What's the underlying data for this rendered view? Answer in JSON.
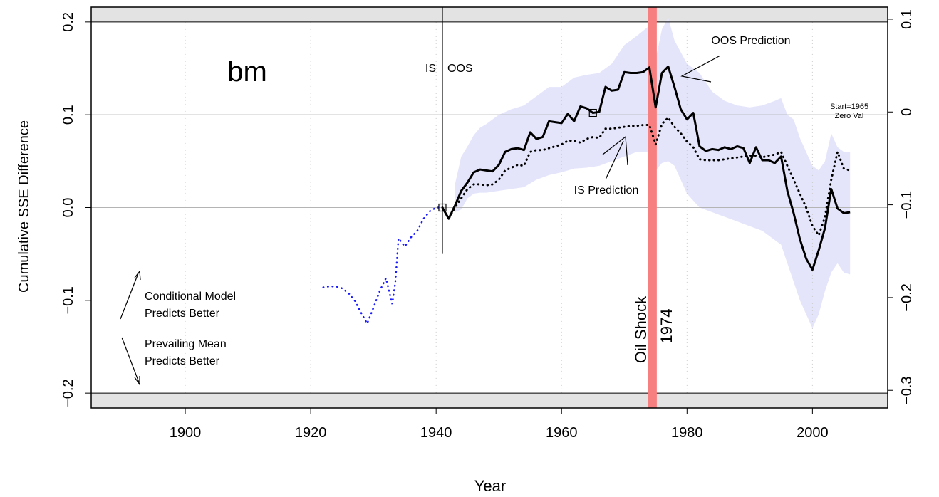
{
  "colors": {
    "background": "#ffffff",
    "grey_band": "#e3e3e3",
    "ci_band": "#e4e5fb",
    "oil_shock_bar": "#f87f7f",
    "is_dotted_series": "#1a1aff",
    "oos_line": "#000000",
    "reference_lines": "#b4b4b4",
    "grid": "#c8c8c8"
  },
  "chart_data": {
    "type": "line",
    "title": "bm",
    "xlabel": "Year",
    "ylabel": "Cumulative SSE Difference",
    "xlim": [
      1885,
      2012
    ],
    "ylim": [
      -0.216,
      0.216
    ],
    "x_ticks": [
      1900,
      1920,
      1940,
      1960,
      1980,
      2000
    ],
    "x_tick_labels": [
      "1900",
      "1920",
      "1940",
      "1960",
      "1980",
      "2000"
    ],
    "y_ticks": [
      -0.2,
      -0.1,
      0.0,
      0.1,
      0.2
    ],
    "y_tick_labels": [
      "−0.2",
      "−0.1",
      "0.0",
      "0.1",
      "0.2"
    ],
    "right_axis": {
      "offset": 0.103,
      "ticks": [
        -0.3,
        -0.2,
        -0.1,
        0.0,
        0.1
      ],
      "tick_labels": [
        "−0.3",
        "−0.2",
        "−0.1",
        "0",
        "0.1"
      ]
    },
    "grid": "vertical dotted",
    "reference_lines_y": [
      0.2,
      0.1,
      0.0,
      -0.2
    ],
    "bands_beyond": [
      0.2,
      -0.2
    ],
    "series": [
      {
        "style": "blue-dotted",
        "x": [
          1922,
          1923,
          1924,
          1925,
          1926,
          1927,
          1928,
          1929,
          1930,
          1931,
          1932,
          1933,
          1933.5,
          1934,
          1935,
          1936,
          1937,
          1938,
          1939,
          1940,
          1941
        ],
        "values": [
          -0.086,
          -0.085,
          -0.085,
          -0.087,
          -0.092,
          -0.1,
          -0.113,
          -0.125,
          -0.108,
          -0.09,
          -0.076,
          -0.104,
          -0.08,
          -0.033,
          -0.042,
          -0.032,
          -0.025,
          -0.012,
          -0.004,
          0.0,
          0.0
        ]
      },
      {
        "name": "IS Prediction",
        "style": "black-dotted",
        "x": [
          1941,
          1942,
          1943,
          1944,
          1945,
          1946,
          1947,
          1948,
          1949,
          1950,
          1951,
          1952,
          1953,
          1954,
          1955,
          1956,
          1957,
          1958,
          1959,
          1960,
          1961,
          1962,
          1963,
          1964,
          1965,
          1966,
          1967,
          1968,
          1969,
          1970,
          1971,
          1972,
          1973,
          1974,
          1975,
          1976,
          1977,
          1978,
          1979,
          1980,
          1981,
          1982,
          1983,
          1984,
          1985,
          1986,
          1987,
          1988,
          1989,
          1990,
          1991,
          1992,
          1993,
          1994,
          1995,
          1996,
          1997,
          1998,
          1999,
          2000,
          2001,
          2002,
          2003,
          2004,
          2005,
          2006
        ],
        "values": [
          0.0,
          -0.012,
          0.0,
          0.01,
          0.02,
          0.025,
          0.025,
          0.024,
          0.025,
          0.03,
          0.04,
          0.043,
          0.046,
          0.045,
          0.06,
          0.062,
          0.062,
          0.064,
          0.066,
          0.068,
          0.072,
          0.072,
          0.07,
          0.074,
          0.076,
          0.075,
          0.085,
          0.085,
          0.086,
          0.087,
          0.088,
          0.088,
          0.089,
          0.089,
          0.068,
          0.09,
          0.097,
          0.087,
          0.08,
          0.071,
          0.065,
          0.052,
          0.051,
          0.051,
          0.051,
          0.052,
          0.053,
          0.054,
          0.055,
          0.056,
          0.056,
          0.054,
          0.056,
          0.057,
          0.06,
          0.045,
          0.03,
          0.015,
          0.0,
          -0.02,
          -0.03,
          -0.01,
          0.03,
          0.06,
          0.042,
          0.04
        ]
      },
      {
        "name": "OOS Prediction",
        "style": "black-solid",
        "x": [
          1941,
          1942,
          1943,
          1944,
          1945,
          1946,
          1947,
          1948,
          1949,
          1950,
          1951,
          1952,
          1953,
          1954,
          1955,
          1956,
          1957,
          1958,
          1959,
          1960,
          1961,
          1962,
          1963,
          1964,
          1965,
          1966,
          1967,
          1968,
          1969,
          1970,
          1971,
          1972,
          1973,
          1974,
          1975,
          1976,
          1977,
          1978,
          1979,
          1980,
          1981,
          1982,
          1983,
          1984,
          1985,
          1986,
          1987,
          1988,
          1989,
          1990,
          1991,
          1992,
          1993,
          1994,
          1995,
          1996,
          1997,
          1998,
          1999,
          2000,
          2001,
          2002,
          2003,
          2004,
          2005,
          2006
        ],
        "values": [
          0.0,
          -0.012,
          0.002,
          0.018,
          0.027,
          0.038,
          0.041,
          0.04,
          0.039,
          0.046,
          0.06,
          0.063,
          0.064,
          0.062,
          0.081,
          0.074,
          0.076,
          0.093,
          0.092,
          0.091,
          0.101,
          0.093,
          0.109,
          0.107,
          0.102,
          0.103,
          0.13,
          0.126,
          0.127,
          0.146,
          0.145,
          0.145,
          0.146,
          0.151,
          0.108,
          0.145,
          0.152,
          0.13,
          0.106,
          0.095,
          0.102,
          0.066,
          0.061,
          0.063,
          0.062,
          0.065,
          0.063,
          0.066,
          0.064,
          0.048,
          0.065,
          0.051,
          0.051,
          0.048,
          0.055,
          0.018,
          -0.006,
          -0.034,
          -0.055,
          -0.067,
          -0.046,
          -0.022,
          0.02,
          -0.001,
          -0.006,
          -0.005
        ]
      }
    ],
    "ci_band": {
      "x": [
        1943,
        1944,
        1945,
        1946,
        1947,
        1948,
        1950,
        1952,
        1954,
        1956,
        1958,
        1960,
        1962,
        1964,
        1966,
        1968,
        1970,
        1972,
        1974,
        1975,
        1976,
        1977,
        1978,
        1980,
        1982,
        1984,
        1986,
        1988,
        1990,
        1992,
        1994,
        1995,
        1996,
        1997,
        1998,
        1999,
        2000,
        2001,
        2002,
        2003,
        2004,
        2005,
        2006
      ],
      "upper": [
        0.025,
        0.055,
        0.066,
        0.078,
        0.086,
        0.09,
        0.1,
        0.106,
        0.11,
        0.12,
        0.13,
        0.13,
        0.14,
        0.143,
        0.145,
        0.155,
        0.175,
        0.185,
        0.196,
        0.16,
        0.192,
        0.205,
        0.18,
        0.155,
        0.145,
        0.125,
        0.115,
        0.11,
        0.108,
        0.11,
        0.115,
        0.118,
        0.1,
        0.095,
        0.075,
        0.06,
        0.045,
        0.04,
        0.05,
        0.08,
        0.065,
        0.06,
        0.06
      ],
      "lower": [
        -0.005,
        -0.002,
        0.01,
        0.015,
        0.016,
        0.016,
        0.018,
        0.02,
        0.022,
        0.03,
        0.035,
        0.038,
        0.042,
        0.043,
        0.045,
        0.05,
        0.055,
        0.06,
        0.06,
        0.04,
        0.048,
        0.05,
        0.045,
        0.015,
        0.0,
        -0.005,
        -0.01,
        -0.015,
        -0.02,
        -0.025,
        -0.035,
        -0.04,
        -0.06,
        -0.08,
        -0.1,
        -0.115,
        -0.13,
        -0.115,
        -0.09,
        -0.07,
        -0.06,
        -0.07,
        -0.072
      ]
    },
    "markers": [
      {
        "shape": "square",
        "x": 1941,
        "y": 0.0
      },
      {
        "shape": "square",
        "x": 1965,
        "y": 0.102
      }
    ],
    "is_oos_split_year": 1941,
    "oil_shock_year": 1974.5,
    "legend_arrows": {
      "up_label": [
        "Conditional Model",
        "Predicts Better"
      ],
      "down_label": [
        "Prevailing Mean",
        "Predicts Better"
      ]
    },
    "annotations": {
      "is": "IS",
      "oos": "OOS",
      "oil_shock": "Oil Shock",
      "oil_year": "1974",
      "oos_prediction": "OOS Prediction",
      "is_prediction": "IS Prediction",
      "start_line1": "Start=1965",
      "start_line2": "Zero Val"
    }
  }
}
